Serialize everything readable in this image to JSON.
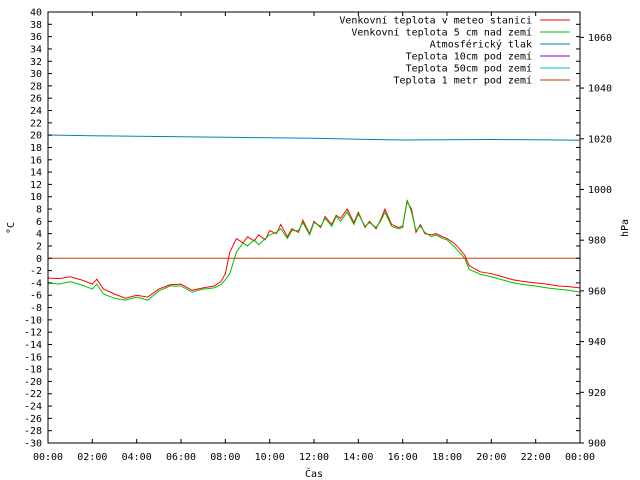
{
  "chart_data": {
    "type": "line",
    "xlabel": "Čas",
    "ylabel_left": "°C",
    "ylabel_right": "hPa",
    "ylim_left": [
      -30,
      40
    ],
    "ylim_right": [
      900,
      1070
    ],
    "xlim_hours": [
      0,
      24
    ],
    "x_ticks": [
      "00:00",
      "02:00",
      "04:00",
      "06:00",
      "08:00",
      "10:00",
      "12:00",
      "14:00",
      "16:00",
      "18:00",
      "20:00",
      "22:00",
      "00:00"
    ],
    "y_ticks_left": [
      40,
      38,
      36,
      34,
      32,
      30,
      28,
      26,
      24,
      22,
      20,
      18,
      16,
      14,
      12,
      10,
      8,
      6,
      4,
      2,
      0,
      -2,
      -4,
      -6,
      -8,
      -10,
      -12,
      -14,
      -16,
      -18,
      -20,
      -22,
      -24,
      -26,
      -28,
      -30
    ],
    "y_ticks_right": [
      1060,
      1040,
      1020,
      1000,
      980,
      960,
      940,
      920,
      900
    ],
    "legend_position": "top-right",
    "series": [
      {
        "name": "Venkovní teplota v meteo stanici",
        "color": "#ff0000",
        "axis": "left",
        "x": [
          0,
          0.5,
          1,
          1.5,
          2,
          2.2,
          2.5,
          3,
          3.5,
          4,
          4.5,
          5,
          5.5,
          6,
          6.5,
          7,
          7.5,
          7.8,
          8.0,
          8.2,
          8.5,
          8.8,
          9,
          9.3,
          9.5,
          9.8,
          10,
          10.3,
          10.5,
          10.8,
          11,
          11.3,
          11.5,
          11.8,
          12,
          12.3,
          12.5,
          12.8,
          13,
          13.2,
          13.5,
          13.8,
          14,
          14.3,
          14.5,
          14.8,
          15,
          15.2,
          15.5,
          15.8,
          16,
          16.2,
          16.4,
          16.6,
          16.8,
          17,
          17.3,
          17.5,
          17.8,
          18,
          18.3,
          18.5,
          18.8,
          19,
          19.5,
          20,
          20.5,
          21,
          21.5,
          22,
          22.5,
          23,
          23.5,
          24
        ],
        "values": [
          -3.2,
          -3.3,
          -3.0,
          -3.5,
          -4.2,
          -3.4,
          -5.0,
          -5.8,
          -6.5,
          -6.0,
          -6.3,
          -5.0,
          -4.3,
          -4.2,
          -5.2,
          -4.8,
          -4.5,
          -3.8,
          -2.5,
          1.0,
          3.2,
          2.5,
          3.5,
          2.8,
          3.8,
          3.0,
          4.5,
          4.0,
          5.5,
          3.5,
          4.8,
          4.2,
          6.2,
          4.0,
          6.0,
          5.0,
          6.8,
          5.5,
          7.0,
          6.5,
          8.0,
          5.8,
          7.5,
          5.0,
          6.0,
          4.8,
          6.2,
          8.0,
          5.5,
          5.0,
          5.2,
          9.2,
          8.0,
          4.2,
          5.5,
          4.0,
          3.8,
          4.0,
          3.5,
          3.2,
          2.5,
          1.8,
          0.5,
          -1.2,
          -2.2,
          -2.5,
          -3.0,
          -3.5,
          -3.8,
          -4.0,
          -4.2,
          -4.5,
          -4.6,
          -4.8
        ]
      },
      {
        "name": "Venkovní teplota 5 cm nad zemí",
        "color": "#00c000",
        "axis": "left",
        "x": [
          0,
          0.5,
          1,
          1.5,
          2,
          2.2,
          2.5,
          3,
          3.5,
          4,
          4.5,
          5,
          5.5,
          6,
          6.5,
          7,
          7.5,
          7.8,
          8.0,
          8.2,
          8.5,
          8.8,
          9,
          9.3,
          9.5,
          9.8,
          10,
          10.3,
          10.5,
          10.8,
          11,
          11.3,
          11.5,
          11.8,
          12,
          12.3,
          12.5,
          12.8,
          13,
          13.2,
          13.5,
          13.8,
          14,
          14.3,
          14.5,
          14.8,
          15,
          15.2,
          15.5,
          15.8,
          16,
          16.2,
          16.4,
          16.6,
          16.8,
          17,
          17.3,
          17.5,
          17.8,
          18,
          18.3,
          18.5,
          18.8,
          19,
          19.5,
          20,
          20.5,
          21,
          21.5,
          22,
          22.5,
          23,
          23.5,
          24
        ],
        "values": [
          -4.0,
          -4.2,
          -3.8,
          -4.3,
          -5.0,
          -4.2,
          -5.8,
          -6.5,
          -6.8,
          -6.3,
          -6.8,
          -5.3,
          -4.5,
          -4.5,
          -5.5,
          -5.0,
          -4.8,
          -4.3,
          -3.5,
          -2.5,
          1.0,
          2.5,
          2.0,
          3.0,
          2.2,
          3.2,
          3.8,
          4.2,
          4.8,
          3.2,
          4.5,
          4.5,
          5.8,
          3.8,
          5.8,
          5.2,
          6.5,
          5.2,
          6.8,
          6.0,
          7.5,
          5.5,
          7.2,
          5.2,
          5.8,
          5.0,
          6.0,
          7.5,
          5.2,
          4.8,
          5.0,
          9.5,
          7.5,
          4.5,
          5.2,
          4.2,
          3.5,
          3.8,
          3.2,
          3.0,
          2.0,
          1.2,
          0.0,
          -1.8,
          -2.6,
          -3.0,
          -3.5,
          -4.0,
          -4.3,
          -4.5,
          -4.8,
          -5.0,
          -5.2,
          -5.5
        ]
      },
      {
        "name": "Atmosférický tlak",
        "color": "#0080c0",
        "axis": "right",
        "x": [
          0,
          2,
          4,
          6,
          8,
          10,
          12,
          14,
          16,
          18,
          20,
          22,
          24
        ],
        "values": [
          1021.5,
          1021.2,
          1021.0,
          1020.8,
          1020.6,
          1020.4,
          1020.2,
          1019.8,
          1019.5,
          1019.6,
          1019.7,
          1019.6,
          1019.4
        ]
      },
      {
        "name": "Teplota 10cm pod zemí",
        "color": "#9900cc",
        "axis": "left",
        "x": [],
        "values": []
      },
      {
        "name": "Teplota 50cm pod zemí",
        "color": "#00c0c0",
        "axis": "left",
        "x": [],
        "values": []
      },
      {
        "name": "Teplota 1 metr pod zemí",
        "color": "#c04000",
        "axis": "left",
        "x": [
          0,
          24
        ],
        "values": [
          0,
          0
        ]
      }
    ]
  }
}
